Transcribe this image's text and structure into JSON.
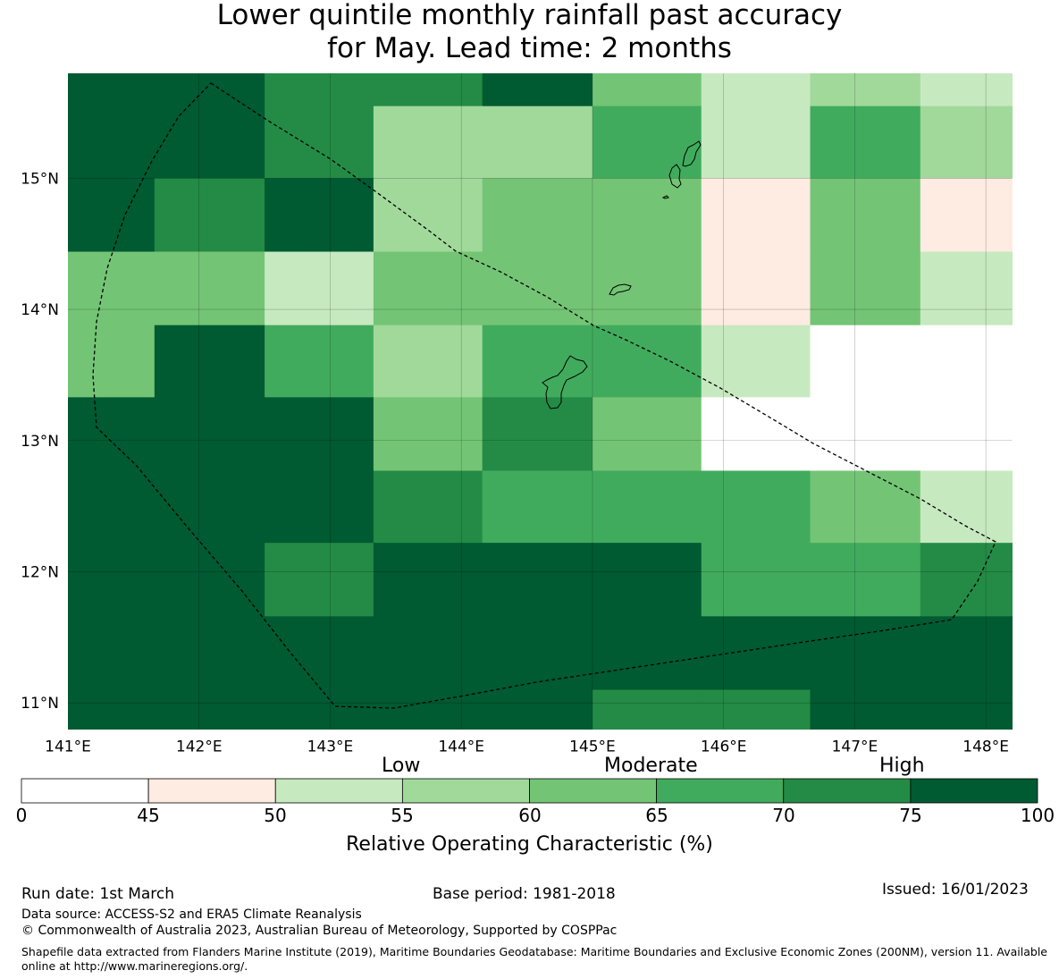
{
  "title_line1": "Lower quintile monthly rainfall past accuracy",
  "title_line2": "for May. Lead time: 2 months",
  "map": {
    "lon_range": [
      141.0,
      148.2
    ],
    "lat_range": [
      10.8,
      15.8
    ],
    "lon_ticks": [
      "141°E",
      "142°E",
      "143°E",
      "144°E",
      "145°E",
      "146°E",
      "147°E",
      "148°E"
    ],
    "lat_ticks": [
      "15°N",
      "14°N",
      "13°N",
      "12°N",
      "11°N"
    ],
    "grid_lon_edges": [
      141.0,
      141.66,
      142.5,
      143.33,
      144.16,
      145.0,
      145.83,
      146.66,
      147.5,
      148.2
    ],
    "grid_lat_edges": [
      15.8,
      15.55,
      15.0,
      14.44,
      13.88,
      13.33,
      12.77,
      12.22,
      11.66,
      11.1,
      10.8
    ],
    "cell_classes": [
      [
        7,
        7,
        6,
        6,
        7,
        4,
        2,
        3,
        2
      ],
      [
        7,
        7,
        6,
        3,
        3,
        5,
        2,
        5,
        3
      ],
      [
        7,
        6,
        7,
        3,
        4,
        4,
        1,
        4,
        1
      ],
      [
        4,
        4,
        2,
        4,
        4,
        4,
        1,
        4,
        2
      ],
      [
        4,
        7,
        5,
        3,
        5,
        5,
        2,
        0,
        0
      ],
      [
        7,
        7,
        7,
        4,
        6,
        4,
        0,
        0,
        0
      ],
      [
        7,
        7,
        7,
        6,
        5,
        5,
        5,
        4,
        2
      ],
      [
        7,
        7,
        6,
        7,
        7,
        7,
        5,
        5,
        6
      ],
      [
        7,
        7,
        7,
        7,
        7,
        7,
        7,
        7,
        7
      ],
      [
        7,
        7,
        7,
        7,
        7,
        6,
        6,
        7,
        7
      ]
    ],
    "palette": [
      "#ffffff",
      "#feebe2",
      "#c7e9c0",
      "#a1d99b",
      "#74c476",
      "#41ab5d",
      "#238b45",
      "#005a32"
    ]
  },
  "colorbar": {
    "category_labels": [
      "Low",
      "Moderate",
      "High"
    ],
    "ticks": [
      "0",
      "45",
      "50",
      "55",
      "60",
      "65",
      "70",
      "75",
      "100"
    ],
    "label": "Relative Operating Characteristic (%)"
  },
  "footer": {
    "run_date": "Run date: 1st March",
    "base_period": "Base period: 1981-2018",
    "issued": "Issued: 16/01/2023",
    "data_source": "Data source: ACCESS-S2 and ERA5 Climate Reanalysis",
    "copyright": "© Commonwealth of Australia 2023, Australian Bureau of Meteorology, Supported by COSPPac",
    "shapefile": "Shapefile data extracted from Flanders Marine Institute (2019), Maritime Boundaries Geodatabase: Maritime Boundaries and Exclusive Economic Zones (200NM), version 11. Available online at http://www.marineregions.org/."
  }
}
